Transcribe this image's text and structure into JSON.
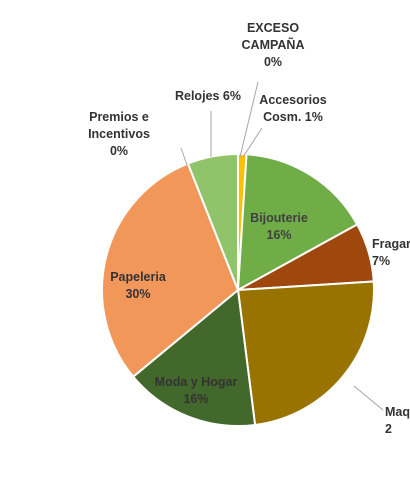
{
  "chart_data": {
    "type": "pie",
    "title": "",
    "slices": [
      {
        "name": "EXCESO CAMPAÑA",
        "value": 0,
        "label_lines": [
          "EXCESO",
          "CAMPAÑA",
          "0%"
        ],
        "color": "#4472c4"
      },
      {
        "name": "Accesorios Cosm.",
        "value": 1,
        "label_lines": [
          "Accesorios",
          "Cosm. 1%"
        ],
        "color": "#ffc000"
      },
      {
        "name": "Bijouterie",
        "value": 16,
        "label_lines": [
          "Bijouterie",
          "16%"
        ],
        "color": "#70ad47"
      },
      {
        "name": "Fragancias",
        "value": 7,
        "label_lines": [
          "Fragar",
          "7%"
        ],
        "color": "#9e480e"
      },
      {
        "name": "Maquillaje",
        "value": 24,
        "label_lines": [
          "Maq",
          "2"
        ],
        "color": "#997300"
      },
      {
        "name": "Moda y Hogar",
        "value": 16,
        "label_lines": [
          "Moda y Hogar",
          "16%"
        ],
        "color": "#43682b"
      },
      {
        "name": "Papeleria",
        "value": 30,
        "label_lines": [
          "Papeleria",
          "30%"
        ],
        "color": "#f1975a"
      },
      {
        "name": "Premios e Incentivos",
        "value": 0,
        "label_lines": [
          "Premios e",
          "Incentivos",
          "0%"
        ],
        "color": "#264478"
      },
      {
        "name": "Relojes",
        "value": 6,
        "label_lines": [
          "Relojes 6%"
        ],
        "color": "#8fc46b"
      }
    ]
  }
}
